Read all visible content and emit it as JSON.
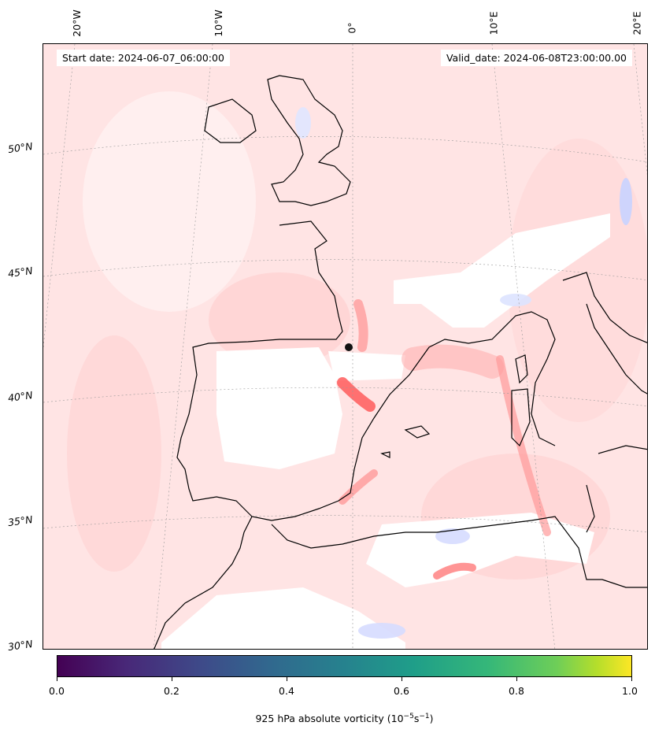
{
  "header": {
    "start_date": "Start date: 2024-06-07_06:00:00",
    "valid_date": "Valid_date: 2024-06-08T23:00:00.00"
  },
  "axes": {
    "longitude_labels": [
      "20°W",
      "10°W",
      "0°",
      "10°E",
      "20°E"
    ],
    "latitude_labels": [
      "50°N",
      "45°N",
      "40°N",
      "35°N",
      "30°N"
    ]
  },
  "colorbar": {
    "ticks": [
      "0.0",
      "0.2",
      "0.4",
      "0.6",
      "0.8",
      "1.0"
    ],
    "label": "925 hPa absolute vorticity (10",
    "label_exp1": "−5",
    "label_mid": "s",
    "label_exp2": "−1",
    "label_end": ")",
    "colormap": [
      "#440154",
      "#3e4a89",
      "#26828e",
      "#35b779",
      "#b5de2b",
      "#fde725"
    ]
  },
  "colors": {
    "field_base": "#ffe2e2",
    "positive_strong": "#ff6a6a",
    "negative": "#dde3ff",
    "coast": "#000000"
  },
  "marker": "storm-center-marker"
}
